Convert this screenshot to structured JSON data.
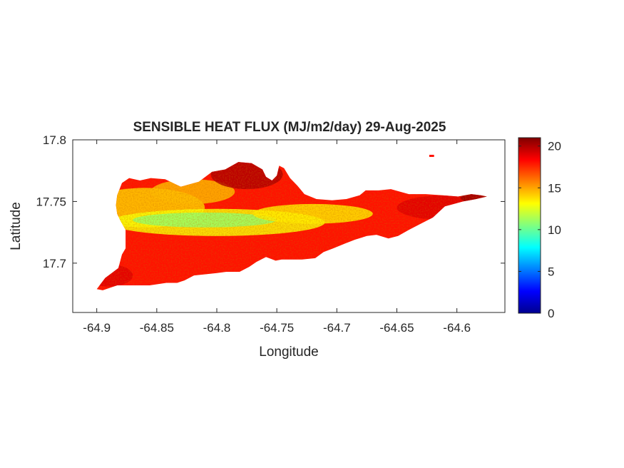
{
  "chart_data": {
    "type": "heatmap",
    "title": "SENSIBLE HEAT FLUX (MJ/m2/day) 29-Aug-2025",
    "xlabel": "Longitude",
    "ylabel": "Latitude",
    "xlim": [
      -64.92,
      -64.56
    ],
    "ylim": [
      17.66,
      17.8
    ],
    "xticks": [
      -64.9,
      -64.85,
      -64.8,
      -64.75,
      -64.7,
      -64.65,
      -64.6
    ],
    "xtick_labels": [
      "-64.9",
      "-64.85",
      "-64.8",
      "-64.75",
      "-64.7",
      "-64.65",
      "-64.6"
    ],
    "yticks": [
      17.7,
      17.75,
      17.8
    ],
    "ytick_labels": [
      "17.7",
      "17.75",
      "17.8"
    ],
    "colorbar": {
      "colormap": "jet",
      "range": [
        0,
        21
      ],
      "ticks": [
        0,
        5,
        10,
        15,
        20
      ],
      "tick_labels": [
        "0",
        "5",
        "10",
        "15",
        "20"
      ]
    },
    "grid": false,
    "island_outline": [
      [
        -64.9,
        17.679
      ],
      [
        -64.893,
        17.688
      ],
      [
        -64.882,
        17.696
      ],
      [
        -64.879,
        17.707
      ],
      [
        -64.876,
        17.712
      ],
      [
        -64.876,
        17.727
      ],
      [
        -64.88,
        17.734
      ],
      [
        -64.883,
        17.74
      ],
      [
        -64.884,
        17.747
      ],
      [
        -64.883,
        17.755
      ],
      [
        -64.879,
        17.765
      ],
      [
        -64.873,
        17.769
      ],
      [
        -64.864,
        17.767
      ],
      [
        -64.855,
        17.769
      ],
      [
        -64.843,
        17.768
      ],
      [
        -64.83,
        17.762
      ],
      [
        -64.815,
        17.766
      ],
      [
        -64.804,
        17.774
      ],
      [
        -64.793,
        17.776
      ],
      [
        -64.782,
        17.782
      ],
      [
        -64.771,
        17.781
      ],
      [
        -64.762,
        17.776
      ],
      [
        -64.759,
        17.77
      ],
      [
        -64.754,
        17.767
      ],
      [
        -64.75,
        17.771
      ],
      [
        -64.748,
        17.779
      ],
      [
        -64.744,
        17.777
      ],
      [
        -64.739,
        17.769
      ],
      [
        -64.733,
        17.763
      ],
      [
        -64.727,
        17.756
      ],
      [
        -64.717,
        17.752
      ],
      [
        -64.704,
        17.751
      ],
      [
        -64.692,
        17.752
      ],
      [
        -64.681,
        17.755
      ],
      [
        -64.676,
        17.759
      ],
      [
        -64.665,
        17.759
      ],
      [
        -64.655,
        17.76
      ],
      [
        -64.64,
        17.756
      ],
      [
        -64.626,
        17.756
      ],
      [
        -64.612,
        17.755
      ],
      [
        -64.599,
        17.754
      ],
      [
        -64.588,
        17.756
      ],
      [
        -64.58,
        17.755
      ],
      [
        -64.575,
        17.754
      ],
      [
        -64.584,
        17.752
      ],
      [
        -64.595,
        17.75
      ],
      [
        -64.61,
        17.746
      ],
      [
        -64.62,
        17.737
      ],
      [
        -64.632,
        17.731
      ],
      [
        -64.64,
        17.727
      ],
      [
        -64.649,
        17.722
      ],
      [
        -64.657,
        17.72
      ],
      [
        -64.667,
        17.723
      ],
      [
        -64.675,
        17.722
      ],
      [
        -64.685,
        17.719
      ],
      [
        -64.693,
        17.716
      ],
      [
        -64.703,
        17.712
      ],
      [
        -64.711,
        17.709
      ],
      [
        -64.718,
        17.704
      ],
      [
        -64.729,
        17.703
      ],
      [
        -64.738,
        17.703
      ],
      [
        -64.746,
        17.703
      ],
      [
        -64.751,
        17.702
      ],
      [
        -64.759,
        17.705
      ],
      [
        -64.767,
        17.701
      ],
      [
        -64.773,
        17.697
      ],
      [
        -64.781,
        17.693
      ],
      [
        -64.792,
        17.693
      ],
      [
        -64.8,
        17.692
      ],
      [
        -64.809,
        17.691
      ],
      [
        -64.819,
        17.69
      ],
      [
        -64.827,
        17.686
      ],
      [
        -64.833,
        17.684
      ],
      [
        -64.842,
        17.684
      ],
      [
        -64.856,
        17.682
      ],
      [
        -64.87,
        17.682
      ],
      [
        -64.883,
        17.682
      ],
      [
        -64.895,
        17.678
      ],
      [
        -64.9,
        17.679
      ]
    ],
    "islet": [
      [
        -64.623,
        17.787
      ],
      [
        -64.619,
        17.787
      ]
    ],
    "field_summary": {
      "north_coast_center": 20,
      "northwest_interior": 14,
      "central_band": 11,
      "south_coast_west": 18,
      "east_end": 19
    }
  }
}
